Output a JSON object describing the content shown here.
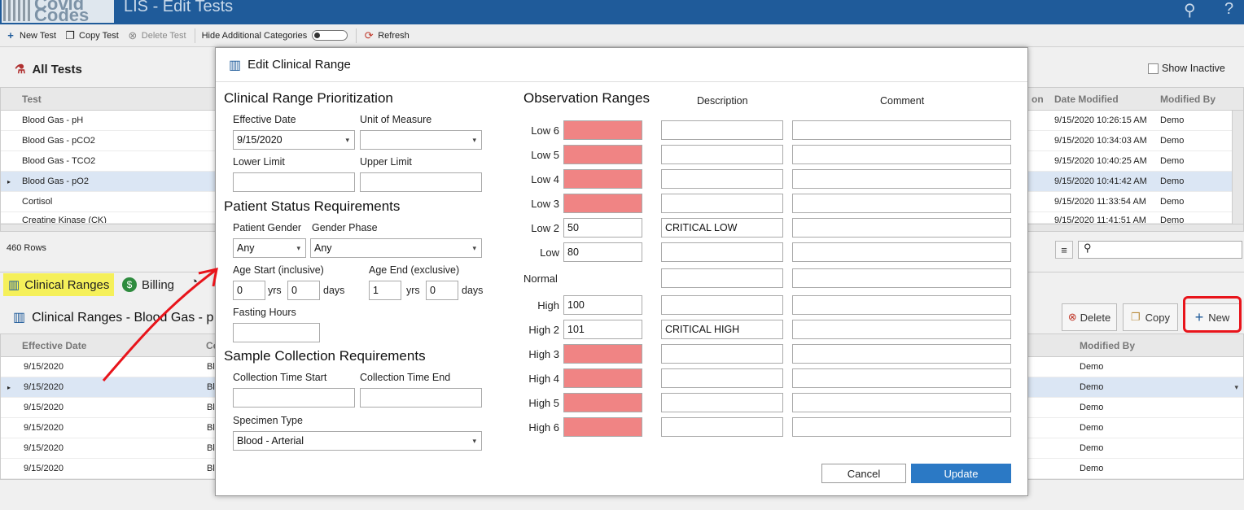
{
  "app": {
    "logo_line1": "Covid",
    "logo_line2": "Codes",
    "title": "LIS - Edit Tests"
  },
  "toolbar": {
    "new_test": "New Test",
    "copy_test": "Copy Test",
    "delete_test": "Delete Test",
    "hide_categories": "Hide Additional Categories",
    "refresh": "Refresh"
  },
  "all_tests": {
    "title": "All Tests",
    "show_inactive": "Show Inactive",
    "columns": {
      "test": "Test",
      "on": "on",
      "date_modified": "Date Modified",
      "modified_by": "Modified By"
    },
    "rows": [
      {
        "test": "Blood Gas - pH",
        "date": "9/15/2020 10:26:15 AM",
        "by": "Demo"
      },
      {
        "test": "Blood Gas - pCO2",
        "date": "9/15/2020 10:34:03 AM",
        "by": "Demo"
      },
      {
        "test": "Blood Gas - TCO2",
        "date": "9/15/2020 10:40:25 AM",
        "by": "Demo"
      },
      {
        "test": "Blood Gas - pO2",
        "date": "9/15/2020 10:41:42 AM",
        "by": "Demo"
      },
      {
        "test": "Cortisol",
        "date": "9/15/2020 11:33:54 AM",
        "by": "Demo"
      },
      {
        "test": "Creatine Kinase (CK)",
        "date": "9/15/2020 11:41:51 AM",
        "by": "Demo"
      }
    ],
    "row_count": "460 Rows"
  },
  "tabs": {
    "clinical_ranges": "Clinical Ranges",
    "billing": "Billing"
  },
  "clinical_ranges": {
    "title": "Clinical Ranges - Blood Gas - p",
    "delete": "Delete",
    "copy": "Copy",
    "new": "New",
    "columns": {
      "effective_date": "Effective Date",
      "co": "Co",
      "modified_by": "Modified By"
    },
    "rows": [
      {
        "date": "9/15/2020",
        "c": "Bl",
        "by": "Demo"
      },
      {
        "date": "9/15/2020",
        "c": "Bl",
        "by": "Demo"
      },
      {
        "date": "9/15/2020",
        "c": "Bl",
        "by": "Demo"
      },
      {
        "date": "9/15/2020",
        "c": "Bl",
        "by": "Demo"
      },
      {
        "date": "9/15/2020",
        "c": "Bl",
        "by": "Demo"
      },
      {
        "date": "9/15/2020",
        "c": "Bl",
        "by": "Demo"
      }
    ]
  },
  "modal": {
    "title": "Edit Clinical Range",
    "prioritization": {
      "heading": "Clinical Range Prioritization",
      "effective_date_label": "Effective Date",
      "effective_date": "9/15/2020",
      "unit_label": "Unit of Measure",
      "unit": "",
      "lower_label": "Lower Limit",
      "lower": "",
      "upper_label": "Upper Limit",
      "upper": ""
    },
    "patient": {
      "heading": "Patient Status Requirements",
      "gender_label": "Patient Gender",
      "gender": "Any",
      "phase_label": "Gender Phase",
      "phase": "Any",
      "age_start_label": "Age Start (inclusive)",
      "age_end_label": "Age End (exclusive)",
      "age_start_yrs": "0",
      "age_start_days": "0",
      "age_end_yrs": "1",
      "age_end_days": "0",
      "yrs": "yrs",
      "days": "days",
      "fasting_label": "Fasting Hours",
      "fasting": ""
    },
    "sample": {
      "heading": "Sample Collection Requirements",
      "start_label": "Collection Time Start",
      "end_label": "Collection Time End",
      "specimen_label": "Specimen Type",
      "specimen": "Blood - Arterial"
    },
    "observation": {
      "heading": "Observation Ranges",
      "desc_header": "Description",
      "comment_header": "Comment",
      "rows": [
        {
          "label": "Low 6",
          "value": "",
          "pink": true,
          "desc": "",
          "comment": ""
        },
        {
          "label": "Low 5",
          "value": "",
          "pink": true,
          "desc": "",
          "comment": ""
        },
        {
          "label": "Low 4",
          "value": "",
          "pink": true,
          "desc": "",
          "comment": ""
        },
        {
          "label": "Low 3",
          "value": "",
          "pink": true,
          "desc": "",
          "comment": ""
        },
        {
          "label": "Low 2",
          "value": "50",
          "pink": false,
          "desc": "CRITICAL LOW",
          "comment": ""
        },
        {
          "label": "Low",
          "value": "80",
          "pink": false,
          "desc": "",
          "comment": ""
        },
        {
          "label": "Normal",
          "value": null,
          "pink": false,
          "desc": "",
          "comment": ""
        },
        {
          "label": "High",
          "value": "100",
          "pink": false,
          "desc": "",
          "comment": ""
        },
        {
          "label": "High 2",
          "value": "101",
          "pink": false,
          "desc": "CRITICAL HIGH",
          "comment": ""
        },
        {
          "label": "High 3",
          "value": "",
          "pink": true,
          "desc": "",
          "comment": ""
        },
        {
          "label": "High 4",
          "value": "",
          "pink": true,
          "desc": "",
          "comment": ""
        },
        {
          "label": "High 5",
          "value": "",
          "pink": true,
          "desc": "",
          "comment": ""
        },
        {
          "label": "High 6",
          "value": "",
          "pink": true,
          "desc": "",
          "comment": ""
        }
      ]
    },
    "cancel": "Cancel",
    "update": "Update"
  },
  "colors": {
    "titlebar": "#1f5b9a",
    "pink_field": "#f08484",
    "update_button": "#2b79c5",
    "annotation": "#e8141b",
    "highlight": "#f5f05a"
  }
}
